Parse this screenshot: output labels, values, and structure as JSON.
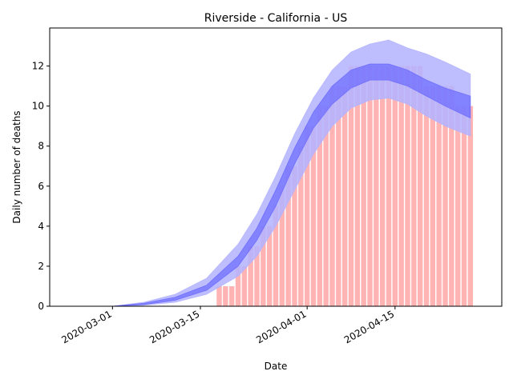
{
  "chart_data": {
    "type": "bar",
    "title": "Riverside - California - US",
    "xlabel": "Date",
    "ylabel": "Daily number of deaths",
    "xlim": [
      "2020-02-20",
      "2020-05-02"
    ],
    "ylim": [
      0,
      13.9
    ],
    "x_ticks": [
      "2020-03-01",
      "2020-03-15",
      "2020-04-01",
      "2020-04-15"
    ],
    "y_ticks": [
      0,
      2,
      4,
      6,
      8,
      10,
      12
    ],
    "grid": false,
    "legend": "none",
    "bars": {
      "color": "#ffb3b3",
      "dates": [
        "2020-03-18",
        "2020-03-19",
        "2020-03-20",
        "2020-03-21",
        "2020-03-22",
        "2020-03-23",
        "2020-03-24",
        "2020-03-25",
        "2020-03-26",
        "2020-03-27",
        "2020-03-28",
        "2020-03-29",
        "2020-03-30",
        "2020-03-31",
        "2020-04-01",
        "2020-04-02",
        "2020-04-03",
        "2020-04-04",
        "2020-04-05",
        "2020-04-06",
        "2020-04-07",
        "2020-04-08",
        "2020-04-09",
        "2020-04-10",
        "2020-04-11",
        "2020-04-12",
        "2020-04-13",
        "2020-04-14",
        "2020-04-15",
        "2020-04-16",
        "2020-04-17",
        "2020-04-18",
        "2020-04-19",
        "2020-04-20",
        "2020-04-21",
        "2020-04-22",
        "2020-04-23",
        "2020-04-24",
        "2020-04-25",
        "2020-04-26",
        "2020-04-27"
      ],
      "values": [
        1,
        1,
        1,
        2,
        2,
        3,
        3,
        4,
        4,
        5,
        6,
        7,
        7,
        8,
        9,
        9,
        10,
        10,
        11,
        11,
        11,
        12,
        12,
        12,
        12,
        12,
        12,
        12,
        12,
        12,
        12,
        12,
        12,
        11,
        11,
        11,
        11,
        11,
        10,
        10,
        10
      ]
    },
    "model": {
      "inner_band_color": "#6a6aff",
      "outer_band_color": "#b3b3ff",
      "dates": [
        "2020-03-01",
        "2020-03-06",
        "2020-03-11",
        "2020-03-16",
        "2020-03-21",
        "2020-03-24",
        "2020-03-27",
        "2020-03-30",
        "2020-04-02",
        "2020-04-05",
        "2020-04-08",
        "2020-04-11",
        "2020-04-14",
        "2020-04-17",
        "2020-04-20",
        "2020-04-23",
        "2020-04-27"
      ],
      "outer_upper": [
        0,
        0.2,
        0.6,
        1.4,
        3.1,
        4.6,
        6.5,
        8.6,
        10.4,
        11.8,
        12.7,
        13.1,
        13.3,
        12.9,
        12.6,
        12.2,
        11.6
      ],
      "inner_upper": [
        0,
        0.15,
        0.45,
        1.05,
        2.5,
        3.9,
        5.8,
        7.9,
        9.7,
        11.0,
        11.8,
        12.1,
        12.1,
        11.8,
        11.3,
        10.9,
        10.5
      ],
      "inner_lower": [
        0,
        0.08,
        0.3,
        0.8,
        2.0,
        3.3,
        5.0,
        7.1,
        8.9,
        10.1,
        10.9,
        11.3,
        11.3,
        11.0,
        10.5,
        10.0,
        9.4
      ],
      "outer_lower": [
        0,
        0.05,
        0.2,
        0.6,
        1.5,
        2.5,
        4.0,
        5.8,
        7.6,
        9.0,
        9.9,
        10.3,
        10.4,
        10.1,
        9.5,
        9.0,
        8.5
      ]
    }
  }
}
